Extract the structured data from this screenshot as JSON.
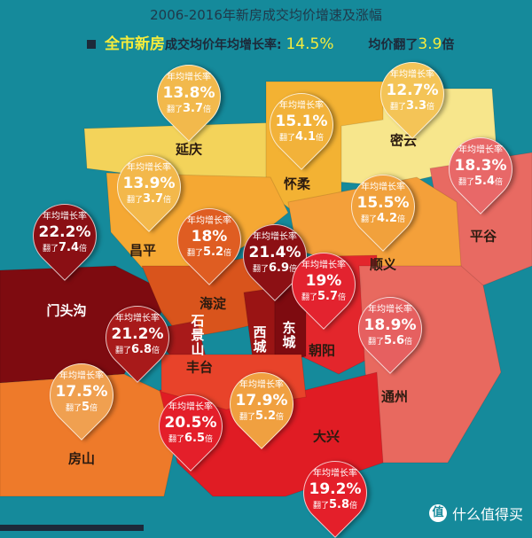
{
  "title": "2006-2016年新房成交均价增速及涨幅",
  "summary": {
    "highlight": "全市新房",
    "rate_label": "成交均价年均增长率:",
    "rate": "14.5%",
    "multiple_label": "均价翻了",
    "multiple": "3.9",
    "multiple_unit": "倍"
  },
  "pin_labels": {
    "rate_label": "年均增长率",
    "multiple_prefix": "翻了",
    "multiple_unit": "倍"
  },
  "districts": [
    {
      "name": "延庆",
      "rate": "13.8%",
      "multiple": "3.7",
      "color": "#f2b94c",
      "region_color": "#f3d35a"
    },
    {
      "name": "怀柔",
      "rate": "15.1%",
      "multiple": "4.1",
      "color": "#f2b23a",
      "region_color": "#f3b233"
    },
    {
      "name": "密云",
      "rate": "12.7%",
      "multiple": "3.3",
      "color": "#f4c457",
      "region_color": "#f7e68c"
    },
    {
      "name": "昌平",
      "rate": "13.9%",
      "multiple": "3.7",
      "color": "#f3b84b",
      "region_color": "#f5a833"
    },
    {
      "name": "顺义",
      "rate": "15.5%",
      "multiple": "4.2",
      "color": "#f1a13c",
      "region_color": "#f4a03a"
    },
    {
      "name": "平谷",
      "rate": "18.3%",
      "multiple": "5.4",
      "color": "#e86868",
      "region_color": "#e86a62"
    },
    {
      "name": "门头沟",
      "rate": "22.2%",
      "multiple": "7.4",
      "color": "#8a0f14",
      "region_color": "#7e0b10"
    },
    {
      "name": "海淀",
      "rate": "18%",
      "multiple": "5.2",
      "color": "#df5d22",
      "region_color": "#d9541c"
    },
    {
      "name": "东城",
      "rate": "21.4%",
      "multiple": "6.9",
      "color": "#8c1014",
      "region_color": "#7e0b10"
    },
    {
      "name": "西城",
      "rate": "",
      "multiple": "",
      "color": "",
      "region_color": "#9a1414"
    },
    {
      "name": "朝阳",
      "rate": "19%",
      "multiple": "5.7",
      "color": "#e3232f",
      "region_color": "#e3262c"
    },
    {
      "name": "石景山",
      "rate": "21.2%",
      "multiple": "6.8",
      "color": "#a81a1a",
      "region_color": "#a81a1a"
    },
    {
      "name": "通州",
      "rate": "18.9%",
      "multiple": "5.6",
      "color": "#e66060",
      "region_color": "#e8695f"
    },
    {
      "name": "房山",
      "rate": "17.5%",
      "multiple": "5",
      "color": "#f0a050",
      "region_color": "#ee7a2a"
    },
    {
      "name": "丰台",
      "rate": "17.9%",
      "multiple": "5.2",
      "color": "#f0a040",
      "region_color": "#e8432a"
    },
    {
      "name": "大兴",
      "rate": "19.2%",
      "multiple": "5.8",
      "color": "#e41f2a",
      "region_color": "#e01c24"
    },
    {
      "name": "大兴(pin2)",
      "rate": "20.5%",
      "multiple": "6.5",
      "color": "#e41f2a",
      "region_color": ""
    }
  ],
  "watermark_logo": "什么值得买",
  "logo_icon": "值"
}
